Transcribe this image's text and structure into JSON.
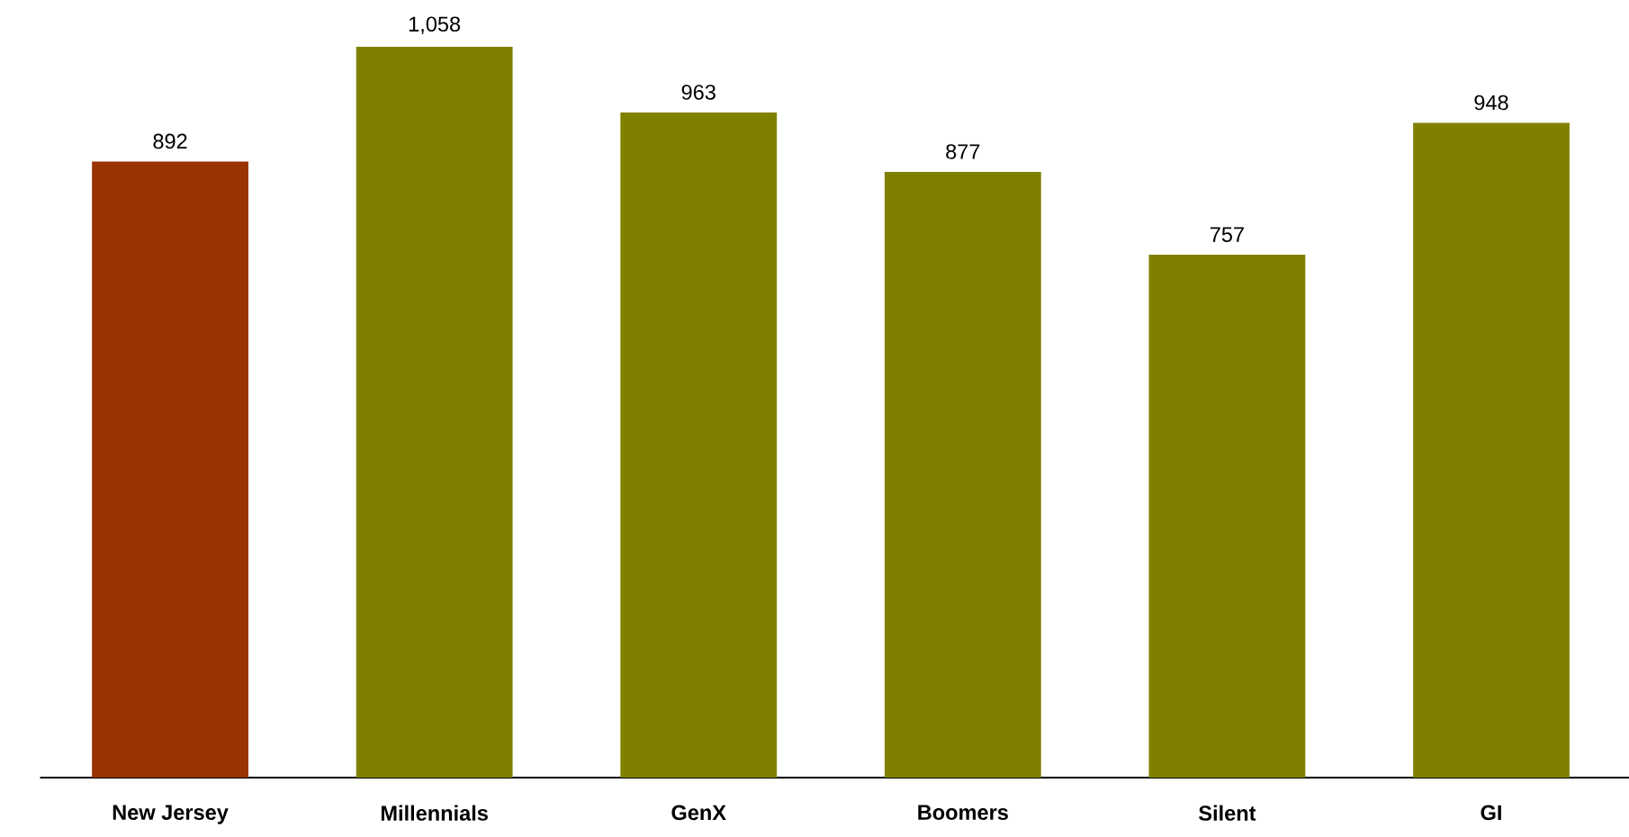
{
  "chart_data": {
    "type": "bar",
    "categories": [
      "New Jersey",
      "Millennials",
      "GenX",
      "Boomers",
      "Silent",
      "GI"
    ],
    "values": [
      892,
      1058,
      963,
      877,
      757,
      948
    ],
    "colors": [
      "#993300",
      "#808000",
      "#808000",
      "#808000",
      "#808000",
      "#808000"
    ],
    "value_labels": [
      "892",
      "1,058",
      "963",
      "877",
      "757",
      "948"
    ]
  }
}
